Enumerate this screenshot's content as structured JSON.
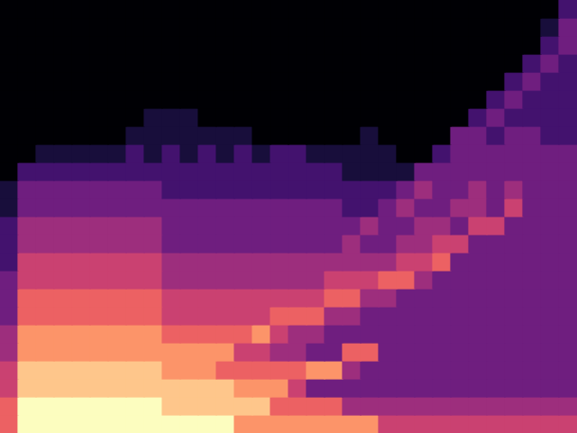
{
  "chart_data": {
    "type": "heatmap",
    "color": "magma",
    "grid": false,
    "tick_labels": false,
    "zlim": [
      0,
      9
    ],
    "cells": [
      [
        0,
        0,
        0,
        0,
        0,
        0,
        0,
        0,
        0,
        0,
        0,
        0,
        0,
        0,
        0,
        0,
        0,
        0,
        0,
        0,
        0,
        0,
        0,
        0,
        0,
        0,
        0,
        0,
        0,
        0,
        0,
        2
      ],
      [
        0,
        0,
        0,
        0,
        0,
        0,
        0,
        0,
        0,
        0,
        0,
        0,
        0,
        0,
        0,
        0,
        0,
        0,
        0,
        0,
        0,
        0,
        0,
        0,
        0,
        0,
        0,
        0,
        0,
        0,
        1,
        3
      ],
      [
        0,
        0,
        0,
        0,
        0,
        0,
        0,
        0,
        0,
        0,
        0,
        0,
        0,
        0,
        0,
        0,
        0,
        0,
        0,
        0,
        0,
        0,
        0,
        0,
        0,
        0,
        0,
        0,
        0,
        0,
        2,
        3
      ],
      [
        0,
        0,
        0,
        0,
        0,
        0,
        0,
        0,
        0,
        0,
        0,
        0,
        0,
        0,
        0,
        0,
        0,
        0,
        0,
        0,
        0,
        0,
        0,
        0,
        0,
        0,
        0,
        0,
        0,
        2,
        3,
        2
      ],
      [
        0,
        0,
        0,
        0,
        0,
        0,
        0,
        0,
        0,
        0,
        0,
        0,
        0,
        0,
        0,
        0,
        0,
        0,
        0,
        0,
        0,
        0,
        0,
        0,
        0,
        0,
        0,
        0,
        2,
        3,
        2,
        2
      ],
      [
        0,
        0,
        0,
        0,
        0,
        0,
        0,
        0,
        0,
        0,
        0,
        0,
        0,
        0,
        0,
        0,
        0,
        0,
        0,
        0,
        0,
        0,
        0,
        0,
        0,
        0,
        0,
        2,
        3,
        2,
        2,
        2
      ],
      [
        0,
        0,
        0,
        0,
        0,
        0,
        0,
        0,
        1,
        1,
        1,
        0,
        0,
        0,
        0,
        0,
        0,
        0,
        0,
        0,
        0,
        0,
        0,
        0,
        0,
        0,
        2,
        3,
        2,
        2,
        2,
        2
      ],
      [
        0,
        0,
        0,
        0,
        0,
        0,
        0,
        1,
        1,
        1,
        1,
        1,
        1,
        1,
        0,
        0,
        0,
        0,
        0,
        0,
        1,
        0,
        0,
        0,
        0,
        3,
        3,
        2,
        3,
        3,
        2,
        2
      ],
      [
        0,
        0,
        1,
        1,
        1,
        1,
        1,
        2,
        1,
        2,
        1,
        2,
        1,
        2,
        1,
        2,
        2,
        1,
        1,
        1,
        1,
        1,
        0,
        0,
        2,
        3,
        3,
        3,
        3,
        3,
        3,
        3
      ],
      [
        0,
        2,
        2,
        2,
        2,
        2,
        2,
        2,
        2,
        2,
        2,
        2,
        2,
        2,
        2,
        2,
        2,
        2,
        2,
        1,
        1,
        1,
        1,
        3,
        3,
        3,
        3,
        3,
        3,
        3,
        3,
        3
      ],
      [
        1,
        3,
        3,
        3,
        3,
        3,
        3,
        3,
        3,
        2,
        2,
        2,
        2,
        2,
        2,
        2,
        2,
        2,
        2,
        2,
        2,
        2,
        3,
        4,
        3,
        3,
        4,
        3,
        4,
        3,
        3,
        3
      ],
      [
        1,
        3,
        3,
        3,
        3,
        3,
        3,
        3,
        3,
        3,
        3,
        3,
        3,
        3,
        3,
        3,
        3,
        3,
        3,
        2,
        2,
        3,
        4,
        3,
        3,
        4,
        4,
        3,
        5,
        3,
        3,
        3
      ],
      [
        2,
        4,
        4,
        4,
        4,
        4,
        4,
        4,
        4,
        3,
        3,
        3,
        3,
        3,
        3,
        3,
        3,
        3,
        3,
        3,
        4,
        3,
        3,
        4,
        4,
        3,
        5,
        5,
        3,
        3,
        3,
        3
      ],
      [
        2,
        4,
        4,
        4,
        4,
        4,
        4,
        4,
        4,
        3,
        3,
        3,
        3,
        3,
        3,
        3,
        3,
        3,
        3,
        4,
        3,
        3,
        4,
        4,
        5,
        5,
        3,
        3,
        3,
        3,
        3,
        3
      ],
      [
        2,
        5,
        5,
        5,
        5,
        5,
        5,
        5,
        5,
        4,
        4,
        4,
        4,
        4,
        4,
        4,
        4,
        4,
        4,
        4,
        4,
        4,
        5,
        5,
        6,
        3,
        3,
        3,
        3,
        3,
        3,
        3
      ],
      [
        3,
        5,
        5,
        5,
        5,
        5,
        5,
        5,
        5,
        4,
        4,
        4,
        4,
        4,
        4,
        4,
        4,
        4,
        5,
        5,
        5,
        6,
        6,
        4,
        3,
        3,
        3,
        3,
        3,
        3,
        3,
        3
      ],
      [
        3,
        6,
        6,
        6,
        6,
        6,
        6,
        6,
        6,
        5,
        5,
        5,
        5,
        5,
        5,
        5,
        5,
        5,
        6,
        6,
        4,
        4,
        3,
        3,
        3,
        3,
        3,
        3,
        3,
        3,
        3,
        3
      ],
      [
        3,
        6,
        6,
        6,
        6,
        6,
        6,
        6,
        6,
        5,
        5,
        5,
        5,
        5,
        5,
        6,
        6,
        6,
        4,
        4,
        3,
        3,
        3,
        3,
        3,
        3,
        3,
        3,
        3,
        3,
        3,
        3
      ],
      [
        4,
        7,
        7,
        7,
        7,
        7,
        7,
        7,
        7,
        6,
        6,
        6,
        6,
        6,
        7,
        5,
        4,
        4,
        3,
        3,
        3,
        3,
        3,
        3,
        3,
        3,
        3,
        3,
        3,
        3,
        3,
        3
      ],
      [
        4,
        7,
        7,
        7,
        7,
        7,
        7,
        7,
        7,
        7,
        7,
        7,
        7,
        5,
        5,
        4,
        4,
        3,
        3,
        6,
        6,
        3,
        3,
        3,
        3,
        3,
        3,
        3,
        3,
        3,
        3,
        3
      ],
      [
        5,
        8,
        8,
        8,
        8,
        8,
        8,
        8,
        8,
        7,
        7,
        7,
        6,
        6,
        6,
        6,
        6,
        7,
        7,
        4,
        3,
        3,
        3,
        3,
        3,
        3,
        3,
        3,
        3,
        3,
        3,
        3
      ],
      [
        5,
        8,
        8,
        8,
        8,
        8,
        8,
        8,
        8,
        8,
        8,
        8,
        8,
        7,
        7,
        7,
        5,
        3,
        3,
        3,
        3,
        3,
        3,
        3,
        3,
        3,
        3,
        3,
        3,
        3,
        3,
        3
      ],
      [
        6,
        9,
        9,
        9,
        9,
        9,
        9,
        9,
        9,
        8,
        8,
        8,
        8,
        8,
        8,
        6,
        6,
        6,
        6,
        4,
        4,
        4,
        4,
        4,
        4,
        4,
        4,
        4,
        4,
        4,
        4,
        4
      ],
      [
        6,
        9,
        9,
        9,
        9,
        9,
        9,
        9,
        9,
        9,
        9,
        9,
        9,
        7,
        7,
        7,
        7,
        7,
        7,
        7,
        7,
        5,
        5,
        5,
        5,
        5,
        5,
        5,
        5,
        5,
        5,
        5
      ]
    ]
  }
}
